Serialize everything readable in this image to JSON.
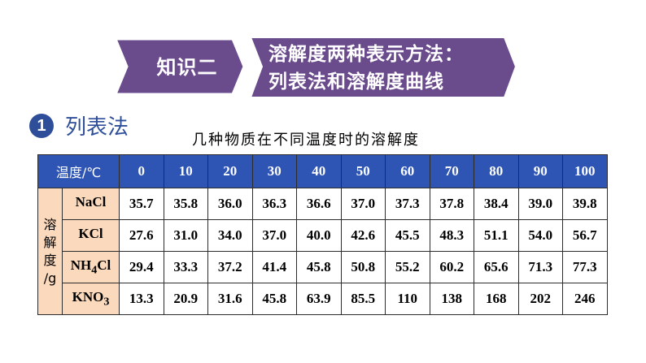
{
  "banner": {
    "tag": "知识二",
    "title_line1": "溶解度两种表示方法：",
    "title_line2": "列表法和溶解度曲线",
    "colors": {
      "tag_fill": "#6a4b8c",
      "title_fill": "#6a4b8c",
      "stroke": "#ffffff"
    }
  },
  "section": {
    "number": "1",
    "title": "列表法"
  },
  "caption": "几种物质在不同温度时的溶解度",
  "table": {
    "corner_label": "温度/℃",
    "temperatures": [
      "0",
      "10",
      "20",
      "30",
      "40",
      "50",
      "60",
      "70",
      "80",
      "90",
      "100"
    ],
    "side_label": "溶解度/g",
    "rows": [
      {
        "name": "NaCl",
        "name_sub": "",
        "name_suffix": "",
        "values": [
          "35.7",
          "35.8",
          "36.0",
          "36.3",
          "36.6",
          "37.0",
          "37.3",
          "37.8",
          "38.4",
          "39.0",
          "39.8"
        ]
      },
      {
        "name": "KCl",
        "name_sub": "",
        "name_suffix": "",
        "values": [
          "27.6",
          "31.0",
          "34.0",
          "37.0",
          "40.0",
          "42.6",
          "45.5",
          "48.3",
          "51.1",
          "54.0",
          "56.7"
        ]
      },
      {
        "name": "NH",
        "name_sub": "4",
        "name_suffix": "Cl",
        "values": [
          "29.4",
          "33.3",
          "37.2",
          "41.4",
          "45.8",
          "50.8",
          "55.2",
          "60.2",
          "65.6",
          "71.3",
          "77.3"
        ]
      },
      {
        "name": "KNO",
        "name_sub": "3",
        "name_suffix": "",
        "values": [
          "13.3",
          "20.9",
          "31.6",
          "45.8",
          "63.9",
          "85.5",
          "110",
          "138",
          "168",
          "202",
          "246"
        ]
      }
    ],
    "colors": {
      "header_bg": "#2e54b4",
      "label_bg": "#fbd9bd"
    }
  }
}
